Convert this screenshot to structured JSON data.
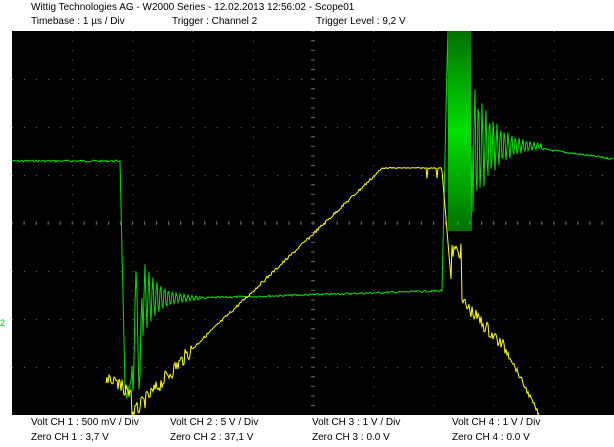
{
  "header": {
    "title": "Wittig Technologies AG - W2000 Series  -  12.02.2013 12:56:02 - Scope01",
    "timebase": "Timebase : 1 µs / Div",
    "trigger": "Trigger : Channel 2",
    "trigger_level": "Trigger Level : 9,2 V"
  },
  "footer": {
    "ch1_volt": "Volt CH 1 : 500 mV / Div",
    "ch2_volt": "Volt CH 2 : 5 V / Div",
    "ch3_volt": "Volt CH 3 : 1 V / Div",
    "ch4_volt": "Volt CH 4 : 1 V / Div",
    "ch1_zero": "Zero CH 1 : 3,7 V",
    "ch2_zero": "Zero CH 2 : 37,1 V",
    "ch3_zero": "Zero CH 3 : 0.0 V",
    "ch4_zero": "Zero CH 4 : 0.0 V"
  },
  "colors": {
    "ch1": "#ffff00",
    "ch2": "#00e000",
    "grid": "#606060",
    "background": "#000000"
  },
  "markers": {
    "ch2_zero_marker": "2"
  }
}
